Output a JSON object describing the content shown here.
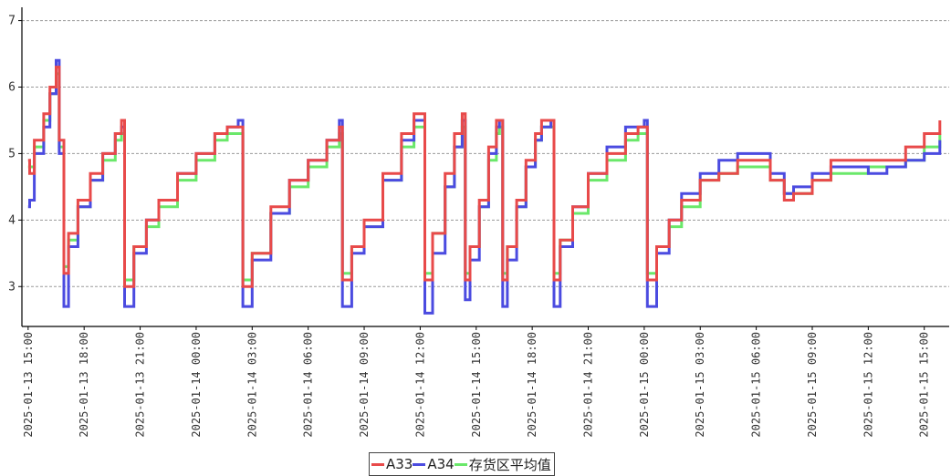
{
  "chart_data": {
    "type": "line",
    "title": "",
    "xlabel": "",
    "ylabel": "",
    "x_range": [
      "2025-01-13 14:40",
      "2025-01-15 16:20"
    ],
    "ylim": [
      2.4,
      7.2
    ],
    "grid": "horizontal dashed",
    "legend_position": "bottom-center",
    "y_ticks": [
      "3",
      "4",
      "5",
      "6",
      "7"
    ],
    "x_ticks": [
      "2025-01-13 15:00",
      "2025-01-13 18:00",
      "2025-01-13 21:00",
      "2025-01-14 00:00",
      "2025-01-14 03:00",
      "2025-01-14 06:00",
      "2025-01-14 09:00",
      "2025-01-14 12:00",
      "2025-01-14 15:00",
      "2025-01-14 18:00",
      "2025-01-14 21:00",
      "2025-01-15 00:00",
      "2025-01-15 03:00",
      "2025-01-15 06:00",
      "2025-01-15 09:00",
      "2025-01-15 12:00",
      "2025-01-15 15:00"
    ],
    "series": [
      {
        "name": "A33",
        "color": "#e84a4a",
        "points": [
          [
            "2025-01-13 15:00",
            4.9
          ],
          [
            "2025-01-13 15:05",
            4.7
          ],
          [
            "2025-01-13 15:20",
            5.2
          ],
          [
            "2025-01-13 15:50",
            5.6
          ],
          [
            "2025-01-13 16:10",
            6.0
          ],
          [
            "2025-01-13 16:30",
            6.3
          ],
          [
            "2025-01-13 16:40",
            5.2
          ],
          [
            "2025-01-13 16:55",
            3.2
          ],
          [
            "2025-01-13 17:10",
            3.8
          ],
          [
            "2025-01-13 17:40",
            4.3
          ],
          [
            "2025-01-13 18:20",
            4.7
          ],
          [
            "2025-01-13 19:00",
            5.0
          ],
          [
            "2025-01-13 19:40",
            5.3
          ],
          [
            "2025-01-13 20:00",
            5.5
          ],
          [
            "2025-01-13 20:10",
            3.0
          ],
          [
            "2025-01-13 20:40",
            3.6
          ],
          [
            "2025-01-13 21:20",
            4.0
          ],
          [
            "2025-01-13 22:00",
            4.3
          ],
          [
            "2025-01-13 23:00",
            4.7
          ],
          [
            "2025-01-14 00:00",
            5.0
          ],
          [
            "2025-01-14 01:00",
            5.3
          ],
          [
            "2025-01-14 01:40",
            5.4
          ],
          [
            "2025-01-14 02:15",
            5.4
          ],
          [
            "2025-01-14 02:30",
            3.0
          ],
          [
            "2025-01-14 03:00",
            3.5
          ],
          [
            "2025-01-14 04:00",
            4.2
          ],
          [
            "2025-01-14 05:00",
            4.6
          ],
          [
            "2025-01-14 06:00",
            4.9
          ],
          [
            "2025-01-14 07:00",
            5.2
          ],
          [
            "2025-01-14 07:40",
            5.4
          ],
          [
            "2025-01-14 07:50",
            3.1
          ],
          [
            "2025-01-14 08:20",
            3.6
          ],
          [
            "2025-01-14 09:00",
            4.0
          ],
          [
            "2025-01-14 10:00",
            4.7
          ],
          [
            "2025-01-14 11:00",
            5.3
          ],
          [
            "2025-01-14 11:40",
            5.6
          ],
          [
            "2025-01-14 12:00",
            5.6
          ],
          [
            "2025-01-14 12:15",
            3.1
          ],
          [
            "2025-01-14 12:40",
            3.8
          ],
          [
            "2025-01-14 13:20",
            4.7
          ],
          [
            "2025-01-14 13:50",
            5.3
          ],
          [
            "2025-01-14 14:15",
            5.6
          ],
          [
            "2025-01-14 14:25",
            3.1
          ],
          [
            "2025-01-14 14:40",
            3.6
          ],
          [
            "2025-01-14 15:10",
            4.3
          ],
          [
            "2025-01-14 15:40",
            5.1
          ],
          [
            "2025-01-14 16:05",
            5.5
          ],
          [
            "2025-01-14 16:15",
            5.5
          ],
          [
            "2025-01-14 16:25",
            3.1
          ],
          [
            "2025-01-14 16:40",
            3.6
          ],
          [
            "2025-01-14 17:10",
            4.3
          ],
          [
            "2025-01-14 17:40",
            4.9
          ],
          [
            "2025-01-14 18:10",
            5.3
          ],
          [
            "2025-01-14 18:30",
            5.5
          ],
          [
            "2025-01-14 19:00",
            5.5
          ],
          [
            "2025-01-14 19:10",
            3.1
          ],
          [
            "2025-01-14 19:30",
            3.7
          ],
          [
            "2025-01-14 20:10",
            4.2
          ],
          [
            "2025-01-14 21:00",
            4.7
          ],
          [
            "2025-01-14 22:00",
            5.0
          ],
          [
            "2025-01-14 23:00",
            5.3
          ],
          [
            "2025-01-14 23:40",
            5.4
          ],
          [
            "2025-01-15 00:00",
            5.4
          ],
          [
            "2025-01-15 00:10",
            3.1
          ],
          [
            "2025-01-15 00:40",
            3.6
          ],
          [
            "2025-01-15 01:20",
            4.0
          ],
          [
            "2025-01-15 02:00",
            4.3
          ],
          [
            "2025-01-15 03:00",
            4.6
          ],
          [
            "2025-01-15 04:00",
            4.7
          ],
          [
            "2025-01-15 05:00",
            4.9
          ],
          [
            "2025-01-15 06:00",
            4.9
          ],
          [
            "2025-01-15 06:45",
            4.6
          ],
          [
            "2025-01-15 07:30",
            4.3
          ],
          [
            "2025-01-15 08:00",
            4.4
          ],
          [
            "2025-01-15 09:00",
            4.6
          ],
          [
            "2025-01-15 10:00",
            4.9
          ],
          [
            "2025-01-15 12:00",
            4.9
          ],
          [
            "2025-01-15 13:00",
            4.9
          ],
          [
            "2025-01-15 14:00",
            5.1
          ],
          [
            "2025-01-15 15:00",
            5.3
          ],
          [
            "2025-01-15 15:50",
            5.5
          ]
        ]
      },
      {
        "name": "A34",
        "color": "#4b4be0",
        "points": [
          [
            "2025-01-13 15:00",
            4.2
          ],
          [
            "2025-01-13 15:05",
            4.3
          ],
          [
            "2025-01-13 15:20",
            5.0
          ],
          [
            "2025-01-13 15:50",
            5.4
          ],
          [
            "2025-01-13 16:10",
            5.9
          ],
          [
            "2025-01-13 16:30",
            6.4
          ],
          [
            "2025-01-13 16:40",
            5.0
          ],
          [
            "2025-01-13 16:55",
            2.7
          ],
          [
            "2025-01-13 17:10",
            3.6
          ],
          [
            "2025-01-13 17:40",
            4.2
          ],
          [
            "2025-01-13 18:20",
            4.6
          ],
          [
            "2025-01-13 19:00",
            5.0
          ],
          [
            "2025-01-13 19:40",
            5.3
          ],
          [
            "2025-01-13 20:00",
            5.4
          ],
          [
            "2025-01-13 20:10",
            2.7
          ],
          [
            "2025-01-13 20:40",
            3.5
          ],
          [
            "2025-01-13 21:20",
            4.0
          ],
          [
            "2025-01-13 22:00",
            4.3
          ],
          [
            "2025-01-13 23:00",
            4.7
          ],
          [
            "2025-01-14 00:00",
            5.0
          ],
          [
            "2025-01-14 01:00",
            5.3
          ],
          [
            "2025-01-14 01:40",
            5.4
          ],
          [
            "2025-01-14 02:15",
            5.5
          ],
          [
            "2025-01-14 02:30",
            2.7
          ],
          [
            "2025-01-14 03:00",
            3.4
          ],
          [
            "2025-01-14 04:00",
            4.1
          ],
          [
            "2025-01-14 05:00",
            4.6
          ],
          [
            "2025-01-14 06:00",
            4.9
          ],
          [
            "2025-01-14 07:00",
            5.2
          ],
          [
            "2025-01-14 07:40",
            5.5
          ],
          [
            "2025-01-14 07:50",
            2.7
          ],
          [
            "2025-01-14 08:20",
            3.5
          ],
          [
            "2025-01-14 09:00",
            3.9
          ],
          [
            "2025-01-14 10:00",
            4.6
          ],
          [
            "2025-01-14 11:00",
            5.2
          ],
          [
            "2025-01-14 11:40",
            5.5
          ],
          [
            "2025-01-14 12:00",
            5.5
          ],
          [
            "2025-01-14 12:15",
            2.6
          ],
          [
            "2025-01-14 12:40",
            3.5
          ],
          [
            "2025-01-14 13:20",
            4.5
          ],
          [
            "2025-01-14 13:50",
            5.1
          ],
          [
            "2025-01-14 14:15",
            5.5
          ],
          [
            "2025-01-14 14:25",
            2.8
          ],
          [
            "2025-01-14 14:40",
            3.4
          ],
          [
            "2025-01-14 15:10",
            4.2
          ],
          [
            "2025-01-14 15:40",
            5.0
          ],
          [
            "2025-01-14 16:05",
            5.4
          ],
          [
            "2025-01-14 16:15",
            5.5
          ],
          [
            "2025-01-14 16:25",
            2.7
          ],
          [
            "2025-01-14 16:40",
            3.4
          ],
          [
            "2025-01-14 17:10",
            4.2
          ],
          [
            "2025-01-14 17:40",
            4.8
          ],
          [
            "2025-01-14 18:10",
            5.2
          ],
          [
            "2025-01-14 18:30",
            5.4
          ],
          [
            "2025-01-14 19:00",
            5.5
          ],
          [
            "2025-01-14 19:10",
            2.7
          ],
          [
            "2025-01-14 19:30",
            3.6
          ],
          [
            "2025-01-14 20:10",
            4.2
          ],
          [
            "2025-01-14 21:00",
            4.7
          ],
          [
            "2025-01-14 22:00",
            5.1
          ],
          [
            "2025-01-14 23:00",
            5.4
          ],
          [
            "2025-01-14 23:40",
            5.4
          ],
          [
            "2025-01-15 00:00",
            5.5
          ],
          [
            "2025-01-15 00:10",
            2.7
          ],
          [
            "2025-01-15 00:40",
            3.5
          ],
          [
            "2025-01-15 01:20",
            4.0
          ],
          [
            "2025-01-15 02:00",
            4.4
          ],
          [
            "2025-01-15 03:00",
            4.7
          ],
          [
            "2025-01-15 04:00",
            4.9
          ],
          [
            "2025-01-15 05:00",
            5.0
          ],
          [
            "2025-01-15 06:00",
            5.0
          ],
          [
            "2025-01-15 06:45",
            4.7
          ],
          [
            "2025-01-15 07:30",
            4.4
          ],
          [
            "2025-01-15 08:00",
            4.5
          ],
          [
            "2025-01-15 09:00",
            4.7
          ],
          [
            "2025-01-15 10:00",
            4.8
          ],
          [
            "2025-01-15 12:00",
            4.7
          ],
          [
            "2025-01-15 13:00",
            4.8
          ],
          [
            "2025-01-15 14:00",
            4.9
          ],
          [
            "2025-01-15 15:00",
            5.0
          ],
          [
            "2025-01-15 15:50",
            5.2
          ]
        ]
      },
      {
        "name": "存货区平均值",
        "color": "#6ae86a",
        "points": [
          [
            "2025-01-13 15:00",
            4.8
          ],
          [
            "2025-01-13 15:20",
            5.1
          ],
          [
            "2025-01-13 15:50",
            5.5
          ],
          [
            "2025-01-13 16:10",
            5.9
          ],
          [
            "2025-01-13 16:30",
            6.2
          ],
          [
            "2025-01-13 16:40",
            5.1
          ],
          [
            "2025-01-13 16:55",
            3.3
          ],
          [
            "2025-01-13 17:10",
            3.7
          ],
          [
            "2025-01-13 17:40",
            4.2
          ],
          [
            "2025-01-13 18:20",
            4.6
          ],
          [
            "2025-01-13 19:00",
            4.9
          ],
          [
            "2025-01-13 19:40",
            5.2
          ],
          [
            "2025-01-13 20:00",
            5.3
          ],
          [
            "2025-01-13 20:10",
            3.1
          ],
          [
            "2025-01-13 20:40",
            3.6
          ],
          [
            "2025-01-13 21:20",
            3.9
          ],
          [
            "2025-01-13 22:00",
            4.2
          ],
          [
            "2025-01-13 23:00",
            4.6
          ],
          [
            "2025-01-14 00:00",
            4.9
          ],
          [
            "2025-01-14 01:00",
            5.2
          ],
          [
            "2025-01-14 01:40",
            5.3
          ],
          [
            "2025-01-14 02:15",
            5.3
          ],
          [
            "2025-01-14 02:30",
            3.1
          ],
          [
            "2025-01-14 03:00",
            3.5
          ],
          [
            "2025-01-14 04:00",
            4.1
          ],
          [
            "2025-01-14 05:00",
            4.5
          ],
          [
            "2025-01-14 06:00",
            4.8
          ],
          [
            "2025-01-14 07:00",
            5.1
          ],
          [
            "2025-01-14 07:40",
            5.3
          ],
          [
            "2025-01-14 07:50",
            3.2
          ],
          [
            "2025-01-14 08:20",
            3.6
          ],
          [
            "2025-01-14 09:00",
            3.9
          ],
          [
            "2025-01-14 10:00",
            4.6
          ],
          [
            "2025-01-14 11:00",
            5.1
          ],
          [
            "2025-01-14 11:40",
            5.4
          ],
          [
            "2025-01-14 12:00",
            5.4
          ],
          [
            "2025-01-14 12:15",
            3.2
          ],
          [
            "2025-01-14 12:40",
            3.8
          ],
          [
            "2025-01-14 13:20",
            4.5
          ],
          [
            "2025-01-14 13:50",
            5.1
          ],
          [
            "2025-01-14 14:15",
            5.4
          ],
          [
            "2025-01-14 14:25",
            3.2
          ],
          [
            "2025-01-14 14:40",
            3.6
          ],
          [
            "2025-01-14 15:10",
            4.2
          ],
          [
            "2025-01-14 15:40",
            4.9
          ],
          [
            "2025-01-14 16:05",
            5.3
          ],
          [
            "2025-01-14 16:15",
            5.4
          ],
          [
            "2025-01-14 16:25",
            3.2
          ],
          [
            "2025-01-14 16:40",
            3.6
          ],
          [
            "2025-01-14 17:10",
            4.2
          ],
          [
            "2025-01-14 17:40",
            4.8
          ],
          [
            "2025-01-14 18:10",
            5.2
          ],
          [
            "2025-01-14 18:30",
            5.4
          ],
          [
            "2025-01-14 19:00",
            5.4
          ],
          [
            "2025-01-14 19:10",
            3.2
          ],
          [
            "2025-01-14 19:30",
            3.7
          ],
          [
            "2025-01-14 20:10",
            4.1
          ],
          [
            "2025-01-14 21:00",
            4.6
          ],
          [
            "2025-01-14 22:00",
            4.9
          ],
          [
            "2025-01-14 23:00",
            5.2
          ],
          [
            "2025-01-14 23:40",
            5.3
          ],
          [
            "2025-01-15 00:00",
            5.3
          ],
          [
            "2025-01-15 00:10",
            3.2
          ],
          [
            "2025-01-15 00:40",
            3.6
          ],
          [
            "2025-01-15 01:20",
            3.9
          ],
          [
            "2025-01-15 02:00",
            4.2
          ],
          [
            "2025-01-15 03:00",
            4.6
          ],
          [
            "2025-01-15 04:00",
            4.7
          ],
          [
            "2025-01-15 05:00",
            4.8
          ],
          [
            "2025-01-15 06:00",
            4.8
          ],
          [
            "2025-01-15 06:45",
            4.6
          ],
          [
            "2025-01-15 07:30",
            4.4
          ],
          [
            "2025-01-15 08:00",
            4.4
          ],
          [
            "2025-01-15 09:00",
            4.6
          ],
          [
            "2025-01-15 10:00",
            4.7
          ],
          [
            "2025-01-15 12:00",
            4.8
          ],
          [
            "2025-01-15 13:00",
            4.8
          ],
          [
            "2025-01-15 14:00",
            4.9
          ],
          [
            "2025-01-15 15:00",
            5.1
          ],
          [
            "2025-01-15 15:50",
            5.3
          ]
        ]
      }
    ]
  }
}
